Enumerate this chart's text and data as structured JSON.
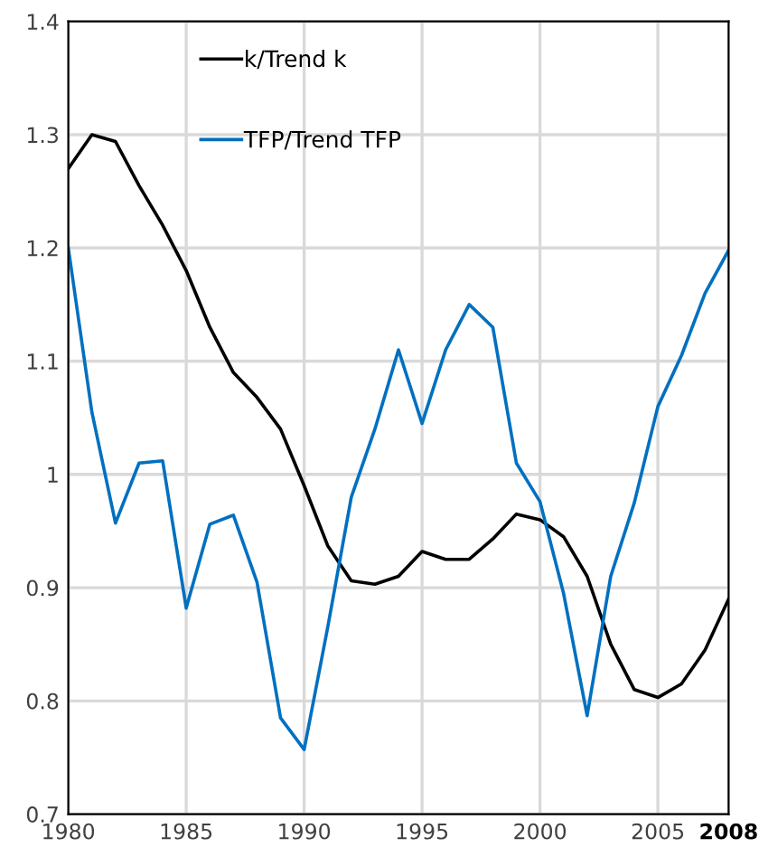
{
  "chart_data": {
    "type": "line",
    "x": [
      1980,
      1981,
      1982,
      1983,
      1984,
      1985,
      1986,
      1987,
      1988,
      1989,
      1990,
      1991,
      1992,
      1993,
      1994,
      1995,
      1996,
      1997,
      1998,
      1999,
      2000,
      2001,
      2002,
      2003,
      2004,
      2005,
      2006,
      2007,
      2008
    ],
    "series": [
      {
        "name": "k/Trend k",
        "color": "#000000",
        "values": [
          1.27,
          1.3,
          1.294,
          1.255,
          1.22,
          1.18,
          1.13,
          1.09,
          1.068,
          1.04,
          0.99,
          0.937,
          0.906,
          0.903,
          0.91,
          0.932,
          0.925,
          0.925,
          0.943,
          0.965,
          0.96,
          0.945,
          0.91,
          0.85,
          0.81,
          0.803,
          0.815,
          0.845,
          0.89
        ]
      },
      {
        "name": "TFP/Trend TFP",
        "color": "#0070c0",
        "values": [
          1.2,
          1.055,
          0.957,
          1.01,
          1.012,
          0.882,
          0.956,
          0.964,
          0.905,
          0.785,
          0.757,
          0.865,
          0.98,
          1.04,
          1.11,
          1.045,
          1.11,
          1.15,
          1.13,
          1.01,
          0.976,
          0.895,
          0.787,
          0.91,
          0.975,
          1.06,
          1.105,
          1.16,
          1.198
        ]
      }
    ],
    "xlim": [
      1980,
      2008
    ],
    "xticks": [
      1980,
      1985,
      1990,
      1995,
      2000,
      2005,
      2008
    ],
    "ylim": [
      0.7,
      1.4
    ],
    "yticks": [
      0.7,
      0.8,
      0.9,
      1,
      1.1,
      1.2,
      1.3,
      1.4
    ],
    "grid": true,
    "legend": "top left",
    "marker": "none",
    "line_style": "solid"
  }
}
